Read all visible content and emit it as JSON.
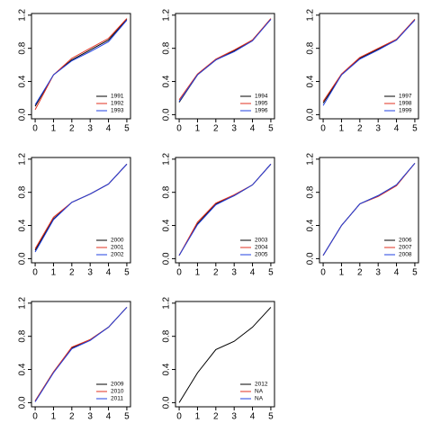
{
  "chart_data": [
    {
      "type": "line",
      "x": [
        0,
        1,
        2,
        3,
        4,
        5
      ],
      "xlim": [
        -0.2,
        5.2
      ],
      "ylim": [
        -0.05,
        1.22
      ],
      "xticks": [
        0,
        1,
        2,
        3,
        4,
        5
      ],
      "yticks": [
        {
          "value": 0,
          "label": "0.0"
        },
        0.4,
        0.8,
        1.2
      ],
      "legend": "bottomright",
      "series": [
        {
          "name": "1991",
          "color": "#000000",
          "values": [
            0.1,
            0.48,
            0.66,
            0.78,
            0.9,
            1.15
          ]
        },
        {
          "name": "1992",
          "color": "#e03020",
          "values": [
            0.06,
            0.48,
            0.68,
            0.8,
            0.92,
            1.16
          ]
        },
        {
          "name": "1993",
          "color": "#2040e0",
          "values": [
            0.12,
            0.48,
            0.65,
            0.76,
            0.88,
            1.14
          ]
        }
      ]
    },
    {
      "type": "line",
      "x": [
        0,
        1,
        2,
        3,
        4,
        5
      ],
      "xlim": [
        -0.2,
        5.2
      ],
      "ylim": [
        -0.05,
        1.22
      ],
      "xticks": [
        0,
        1,
        2,
        3,
        4,
        5
      ],
      "yticks": [
        {
          "value": 0,
          "label": "0.0"
        },
        0.4,
        0.8,
        1.2
      ],
      "legend": "bottomright",
      "series": [
        {
          "name": "1994",
          "color": "#000000",
          "values": [
            0.15,
            0.48,
            0.66,
            0.77,
            0.9,
            1.15
          ]
        },
        {
          "name": "1995",
          "color": "#e03020",
          "values": [
            0.18,
            0.49,
            0.67,
            0.78,
            0.9,
            1.16
          ]
        },
        {
          "name": "1996",
          "color": "#2040e0",
          "values": [
            0.16,
            0.48,
            0.66,
            0.76,
            0.89,
            1.15
          ]
        }
      ]
    },
    {
      "type": "line",
      "x": [
        0,
        1,
        2,
        3,
        4,
        5
      ],
      "xlim": [
        -0.2,
        5.2
      ],
      "ylim": [
        -0.05,
        1.22
      ],
      "xticks": [
        0,
        1,
        2,
        3,
        4,
        5
      ],
      "yticks": [
        {
          "value": 0,
          "label": "0.0"
        },
        0.4,
        0.8,
        1.2
      ],
      "legend": "bottomright",
      "series": [
        {
          "name": "1997",
          "color": "#000000",
          "values": [
            0.14,
            0.48,
            0.68,
            0.79,
            0.9,
            1.15
          ]
        },
        {
          "name": "1998",
          "color": "#e03020",
          "values": [
            0.16,
            0.49,
            0.69,
            0.8,
            0.91,
            1.15
          ]
        },
        {
          "name": "1999",
          "color": "#2040e0",
          "values": [
            0.11,
            0.48,
            0.67,
            0.78,
            0.9,
            1.14
          ]
        }
      ]
    },
    {
      "type": "line",
      "x": [
        0,
        1,
        2,
        3,
        4,
        5
      ],
      "xlim": [
        -0.2,
        5.2
      ],
      "ylim": [
        -0.05,
        1.22
      ],
      "xticks": [
        0,
        1,
        2,
        3,
        4,
        5
      ],
      "yticks": [
        {
          "value": 0,
          "label": "0.0"
        },
        0.4,
        0.8,
        1.2
      ],
      "legend": "bottomright",
      "series": [
        {
          "name": "2000",
          "color": "#000000",
          "values": [
            0.1,
            0.48,
            0.68,
            0.78,
            0.9,
            1.14
          ]
        },
        {
          "name": "2001",
          "color": "#e03020",
          "values": [
            0.12,
            0.5,
            0.68,
            0.78,
            0.9,
            1.14
          ]
        },
        {
          "name": "2002",
          "color": "#2040e0",
          "values": [
            0.08,
            0.47,
            0.68,
            0.78,
            0.9,
            1.14
          ]
        }
      ]
    },
    {
      "type": "line",
      "x": [
        0,
        1,
        2,
        3,
        4,
        5
      ],
      "xlim": [
        -0.2,
        5.2
      ],
      "ylim": [
        -0.05,
        1.22
      ],
      "xticks": [
        0,
        1,
        2,
        3,
        4,
        5
      ],
      "yticks": [
        {
          "value": 0,
          "label": "0.0"
        },
        0.4,
        0.8,
        1.2
      ],
      "legend": "bottomright",
      "series": [
        {
          "name": "2003",
          "color": "#000000",
          "values": [
            0.04,
            0.42,
            0.66,
            0.76,
            0.89,
            1.14
          ]
        },
        {
          "name": "2004",
          "color": "#e03020",
          "values": [
            0.04,
            0.44,
            0.67,
            0.77,
            0.89,
            1.14
          ]
        },
        {
          "name": "2005",
          "color": "#2040e0",
          "values": [
            0.04,
            0.41,
            0.65,
            0.76,
            0.89,
            1.14
          ]
        }
      ]
    },
    {
      "type": "line",
      "x": [
        0,
        1,
        2,
        3,
        4,
        5
      ],
      "xlim": [
        -0.2,
        5.2
      ],
      "ylim": [
        -0.05,
        1.22
      ],
      "xticks": [
        0,
        1,
        2,
        3,
        4,
        5
      ],
      "yticks": [
        {
          "value": 0,
          "label": "0.0"
        },
        0.4,
        0.8,
        1.2
      ],
      "legend": "bottomright",
      "series": [
        {
          "name": "2006",
          "color": "#000000",
          "values": [
            0.04,
            0.4,
            0.66,
            0.76,
            0.89,
            1.15
          ]
        },
        {
          "name": "2007",
          "color": "#e03020",
          "values": [
            0.04,
            0.4,
            0.66,
            0.75,
            0.88,
            1.15
          ]
        },
        {
          "name": "2008",
          "color": "#2040e0",
          "values": [
            0.04,
            0.4,
            0.66,
            0.76,
            0.89,
            1.15
          ]
        }
      ]
    },
    {
      "type": "line",
      "x": [
        0,
        1,
        2,
        3,
        4,
        5
      ],
      "xlim": [
        -0.2,
        5.2
      ],
      "ylim": [
        -0.05,
        1.22
      ],
      "xticks": [
        0,
        1,
        2,
        3,
        4,
        5
      ],
      "yticks": [
        {
          "value": 0,
          "label": "0.0"
        },
        0.4,
        0.8,
        1.2
      ],
      "legend": "bottomright",
      "series": [
        {
          "name": "2009",
          "color": "#000000",
          "values": [
            0.02,
            0.37,
            0.66,
            0.76,
            0.91,
            1.15
          ]
        },
        {
          "name": "2010",
          "color": "#e03020",
          "values": [
            0.02,
            0.37,
            0.67,
            0.76,
            0.91,
            1.15
          ]
        },
        {
          "name": "2011",
          "color": "#2040e0",
          "values": [
            0.01,
            0.36,
            0.65,
            0.75,
            0.91,
            1.15
          ]
        }
      ]
    },
    {
      "type": "line",
      "x": [
        0,
        1,
        2,
        3,
        4,
        5
      ],
      "xlim": [
        -0.2,
        5.2
      ],
      "ylim": [
        -0.05,
        1.22
      ],
      "xticks": [
        0,
        1,
        2,
        3,
        4,
        5
      ],
      "yticks": [
        {
          "value": 0,
          "label": "0.0"
        },
        0.4,
        0.8,
        1.2
      ],
      "legend": "bottomright",
      "series": [
        {
          "name": "2012",
          "color": "#000000",
          "values": [
            0.0,
            0.36,
            0.64,
            0.74,
            0.91,
            1.15
          ]
        },
        {
          "name": "NA",
          "color": "#e03020",
          "values": [
            null,
            null,
            null,
            null,
            null,
            null
          ]
        },
        {
          "name": "NA",
          "color": "#2040e0",
          "values": [
            null,
            null,
            null,
            null,
            null,
            null
          ]
        }
      ]
    }
  ]
}
